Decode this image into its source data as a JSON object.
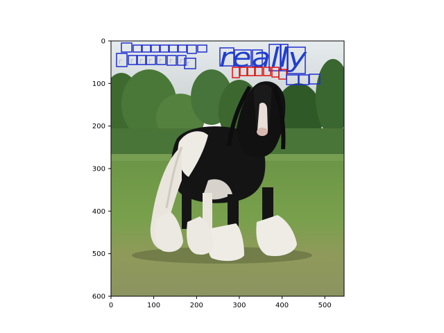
{
  "figure": {
    "x_ticks": [
      "0",
      "100",
      "200",
      "300",
      "400",
      "500"
    ],
    "y_ticks": [
      "0",
      "100",
      "200",
      "300",
      "400",
      "500",
      "600"
    ],
    "detected_words": [
      {
        "text": "really",
        "box_color": "#1f3fcf"
      }
    ],
    "colors": {
      "blue_box": "#1f2fd0",
      "red_box": "#e01010",
      "sky": "#d9dde0",
      "grass": "#6f9a45",
      "trees": "#3f6a32",
      "horse_black": "#141414",
      "horse_white": "#efece6"
    }
  }
}
